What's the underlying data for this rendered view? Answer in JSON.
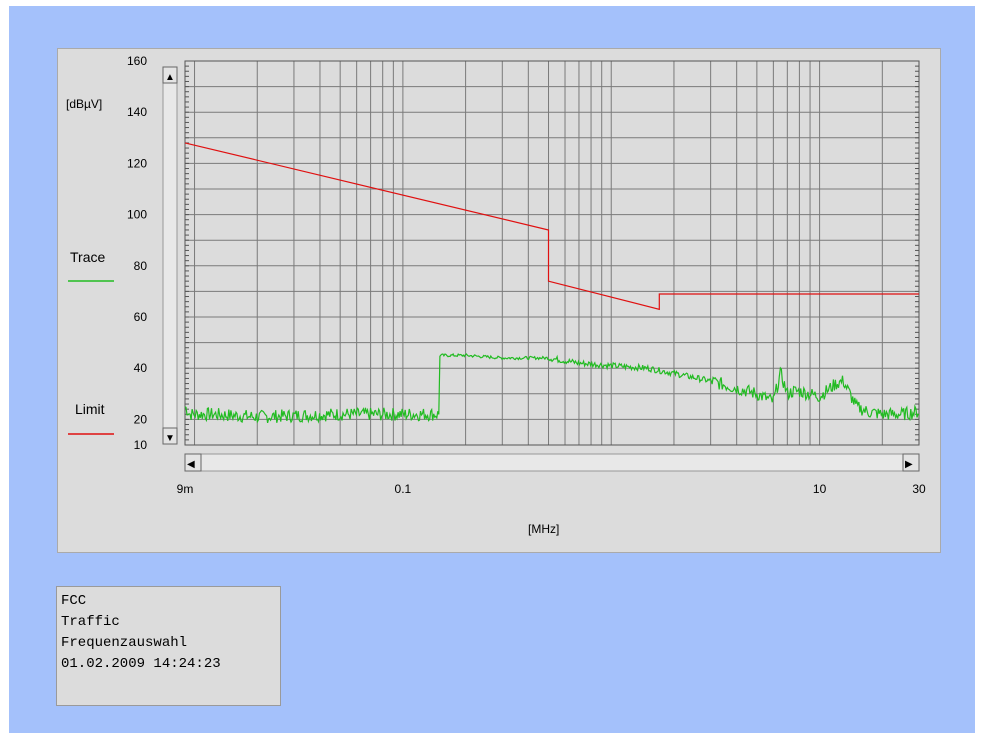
{
  "colors": {
    "background": "#a4c1fb",
    "panel": "#dcdcdc",
    "trace": "#22bb22",
    "limit": "#e01010",
    "grid": "#7a7a7a"
  },
  "legend": [
    {
      "label": "Trace",
      "color": "#22bb22"
    },
    {
      "label": "Limit",
      "color": "#e01010"
    }
  ],
  "info": {
    "line1": "FCC",
    "line2": "Traffic",
    "line3": "Frequenzauswahl",
    "line4": "01.02.2009 14:24:23"
  },
  "chart_data": {
    "type": "line",
    "xscale": "log",
    "xlim": [
      0.009,
      30
    ],
    "ylim": [
      10,
      160
    ],
    "xlabel": "[MHz]",
    "ylabel": "[dBµV]",
    "x_tick_labels": [
      {
        "value": 0.009,
        "label": "9m"
      },
      {
        "value": 0.1,
        "label": "0.1"
      },
      {
        "value": 10,
        "label": "10"
      },
      {
        "value": 30,
        "label": "30"
      }
    ],
    "y_tick_labels": [
      10,
      20,
      40,
      60,
      80,
      100,
      120,
      140,
      160
    ],
    "grid": true,
    "legend_position": "left",
    "series": [
      {
        "name": "Limit",
        "color": "#e01010",
        "x": [
          0.009,
          0.5,
          0.5,
          1.7,
          1.7,
          30
        ],
        "y": [
          128,
          94,
          74,
          63,
          69,
          69
        ]
      },
      {
        "name": "Trace",
        "color": "#22bb22",
        "noisy": true,
        "x": [
          0.009,
          0.0095,
          0.012,
          0.02,
          0.05,
          0.1,
          0.15,
          0.15,
          0.2,
          0.3,
          0.5,
          0.7,
          1,
          1.5,
          2,
          3,
          5,
          6,
          6.5,
          7,
          7.5,
          8,
          10,
          12,
          13,
          15,
          17,
          20,
          25,
          30
        ],
        "y": [
          25,
          22,
          22,
          21,
          22,
          22,
          22,
          45,
          45,
          44,
          44,
          42,
          41,
          40,
          38,
          35,
          30,
          27,
          38,
          30,
          31,
          31,
          29,
          34,
          35,
          25,
          23,
          22,
          22,
          23
        ]
      }
    ],
    "extra_text": [
      {
        "label": "scrollbar-up",
        "glyph": "▲"
      },
      {
        "label": "scrollbar-down",
        "glyph": "▼"
      },
      {
        "label": "scrollbar-left",
        "glyph": "◀"
      },
      {
        "label": "scrollbar-right",
        "glyph": "▶"
      }
    ]
  }
}
